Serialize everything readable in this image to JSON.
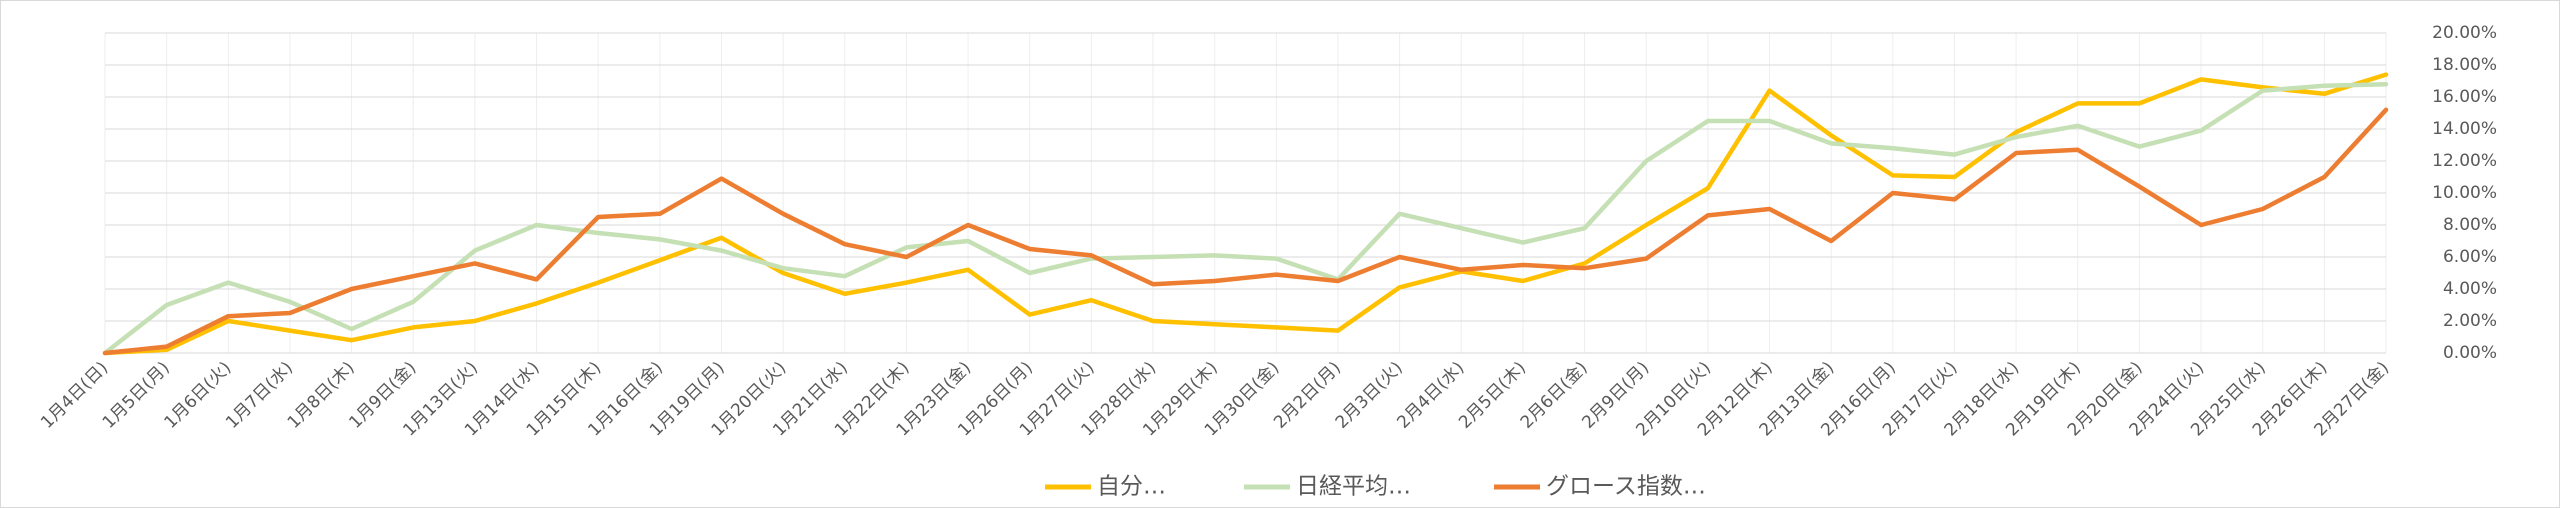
{
  "chart_data": {
    "type": "line",
    "categories": [
      "1月4日(日)",
      "1月5日(月)",
      "1月6日(火)",
      "1月7日(水)",
      "1月8日(木)",
      "1月9日(金)",
      "1月13日(火)",
      "1月14日(水)",
      "1月15日(木)",
      "1月16日(金)",
      "1月19日(月)",
      "1月20日(火)",
      "1月21日(水)",
      "1月22日(木)",
      "1月23日(金)",
      "1月26日(月)",
      "1月27日(火)",
      "1月28日(水)",
      "1月29日(木)",
      "1月30日(金)",
      "2月2日(月)",
      "2月3日(火)",
      "2月4日(水)",
      "2月5日(木)",
      "2月6日(金)",
      "2月9日(月)",
      "2月10日(火)",
      "2月12日(木)",
      "2月13日(金)",
      "2月16日(月)",
      "2月17日(火)",
      "2月18日(水)",
      "2月19日(木)",
      "2月20日(金)",
      "2月24日(火)",
      "2月25日(水)",
      "2月26日(木)",
      "2月27日(金)"
    ],
    "series": [
      {
        "name": "自分…",
        "color": "#FFC000",
        "values": [
          0,
          0.2,
          2.0,
          1.4,
          0.8,
          1.6,
          2.0,
          3.1,
          4.4,
          5.8,
          7.2,
          5.0,
          3.7,
          4.4,
          5.2,
          2.4,
          3.3,
          2.0,
          1.8,
          1.6,
          1.4,
          4.1,
          5.1,
          4.5,
          5.6,
          8.0,
          10.3,
          16.4,
          13.6,
          11.1,
          11.0,
          13.8,
          15.6,
          15.6,
          17.1,
          16.6,
          16.2,
          17.4
        ]
      },
      {
        "name": "日経平均…",
        "color": "#C5E0B4",
        "values": [
          0,
          3.0,
          4.4,
          3.2,
          1.5,
          3.2,
          6.4,
          8.0,
          7.5,
          7.1,
          6.4,
          5.3,
          4.8,
          6.6,
          7.0,
          5.0,
          5.9,
          6.0,
          6.1,
          5.9,
          4.6,
          8.7,
          7.8,
          6.9,
          7.8,
          12.0,
          14.5,
          14.5,
          13.1,
          12.8,
          12.4,
          13.5,
          14.2,
          12.9,
          13.9,
          16.4,
          16.7,
          16.8
        ]
      },
      {
        "name": "グロース指数…",
        "color": "#ED7D31",
        "values": [
          0,
          0.4,
          2.3,
          2.5,
          4.0,
          4.8,
          5.6,
          4.6,
          8.5,
          8.7,
          10.9,
          8.7,
          6.8,
          6.0,
          8.0,
          6.5,
          6.1,
          4.3,
          4.5,
          4.9,
          4.5,
          6.0,
          5.2,
          5.5,
          5.3,
          5.9,
          8.6,
          9.0,
          7.0,
          10.0,
          9.6,
          12.5,
          12.7,
          10.4,
          8.0,
          9.0,
          11.0,
          15.2
        ]
      }
    ],
    "ylim": [
      0,
      20
    ],
    "yticks": [
      {
        "value": 0,
        "label": "0.00%"
      },
      {
        "value": 2,
        "label": "2.00%"
      },
      {
        "value": 4,
        "label": "4.00%"
      },
      {
        "value": 6,
        "label": "6.00%"
      },
      {
        "value": 8,
        "label": "8.00%"
      },
      {
        "value": 10,
        "label": "10.00%"
      },
      {
        "value": 12,
        "label": "12.00%"
      },
      {
        "value": 14,
        "label": "14.00%"
      },
      {
        "value": 16,
        "label": "16.00%"
      },
      {
        "value": 18,
        "label": "18.00%"
      },
      {
        "value": 20,
        "label": "20.00%"
      }
    ],
    "y_axis_side": "right",
    "grid": true,
    "legend": "bottom"
  }
}
